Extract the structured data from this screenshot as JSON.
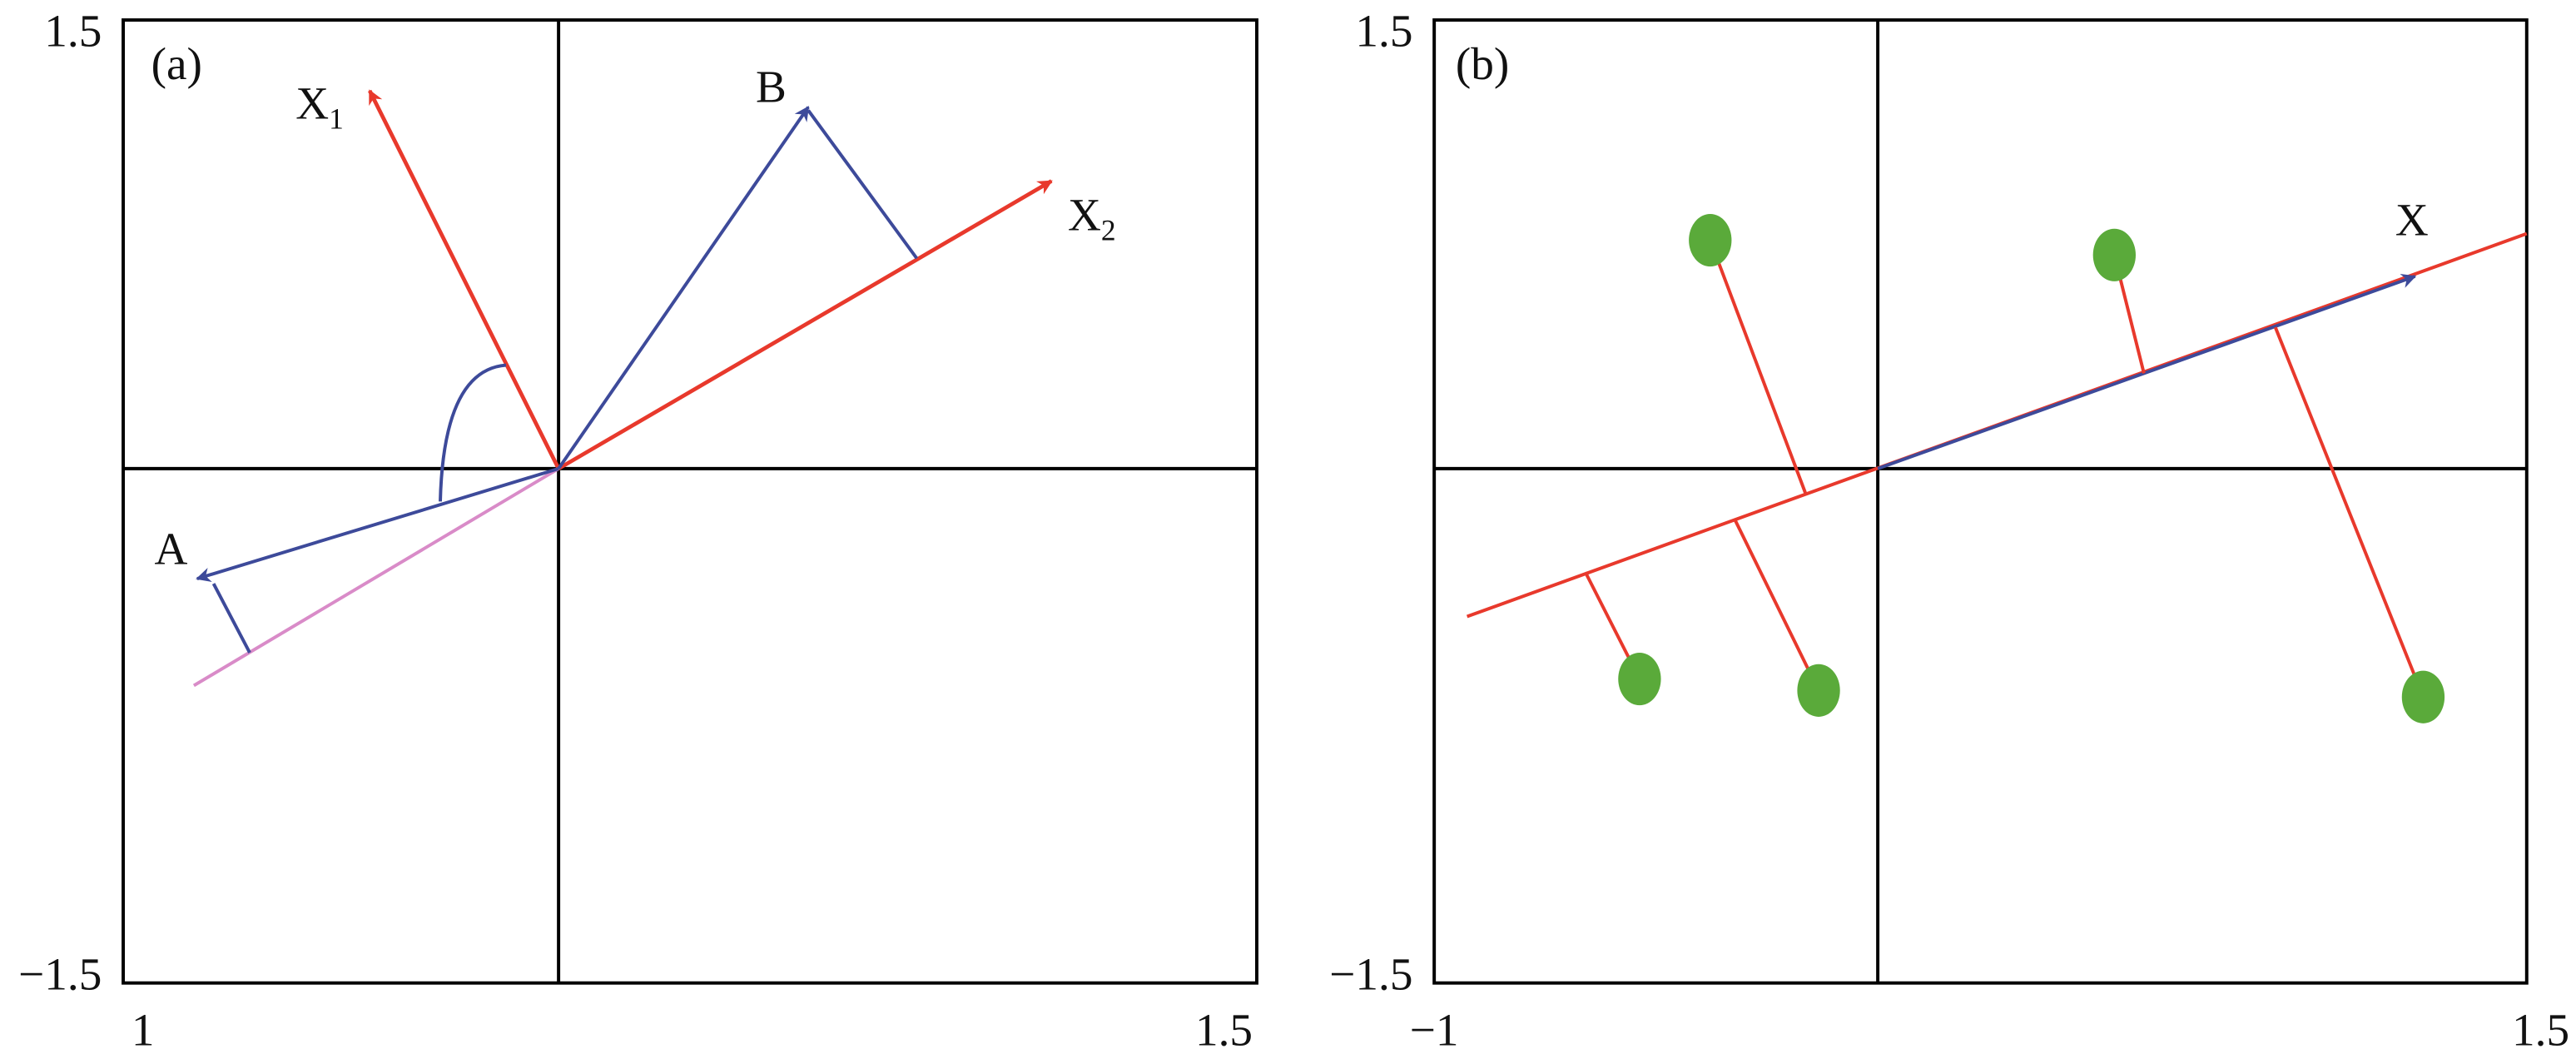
{
  "panels": [
    {
      "label": "(a)",
      "y_top": "1.5",
      "y_bottom": "−1.5",
      "x_left": "1",
      "x_right": "1.5",
      "vectors": [
        {
          "name": "X",
          "sub": "1"
        },
        {
          "name": "X",
          "sub": "2"
        },
        {
          "name": "B"
        },
        {
          "name": "A"
        }
      ]
    },
    {
      "label": "(b)",
      "y_top": "1.5",
      "y_bottom": "−1.5",
      "x_left": "−1",
      "x_right": "1.5",
      "vectors": [
        {
          "name": "X"
        }
      ]
    }
  ]
}
